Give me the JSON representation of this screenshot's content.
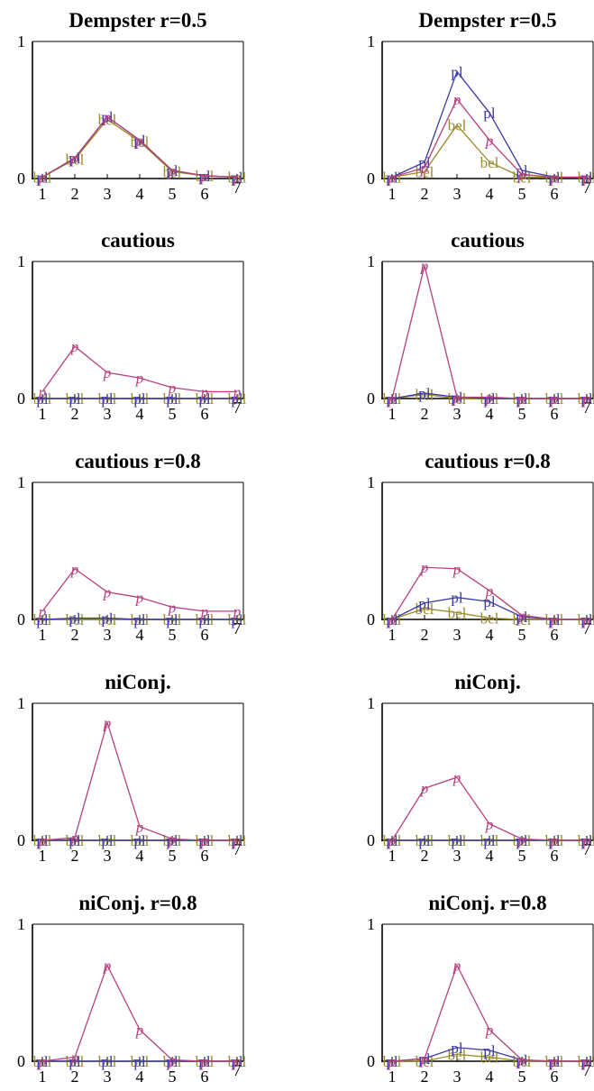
{
  "colors": {
    "p": "#b5417e",
    "pl": "#3b3ba3",
    "bel": "#9b8a2a",
    "axis": "#000000"
  },
  "chart_data": [
    {
      "type": "line",
      "title": "Dempster r=0.5",
      "x": [
        1,
        2,
        3,
        4,
        5,
        6,
        7
      ],
      "xticks": [
        "1",
        "2",
        "3",
        "4",
        "5",
        "6",
        "7"
      ],
      "yticks": [
        "0",
        "1"
      ],
      "ylim": [
        0,
        1
      ],
      "grid": false,
      "series": [
        {
          "name": "p",
          "values": [
            0.01,
            0.15,
            0.45,
            0.28,
            0.06,
            0.02,
            0.01
          ]
        },
        {
          "name": "pl",
          "values": [
            0.01,
            0.15,
            0.45,
            0.28,
            0.06,
            0.02,
            0.01
          ]
        },
        {
          "name": "bel",
          "values": [
            0.01,
            0.14,
            0.43,
            0.27,
            0.05,
            0.02,
            0.01
          ]
        }
      ]
    },
    {
      "type": "line",
      "title": "Dempster r=0.5",
      "x": [
        1,
        2,
        3,
        4,
        5,
        6,
        7
      ],
      "xticks": [
        "1",
        "2",
        "3",
        "4",
        "5",
        "6",
        "7"
      ],
      "yticks": [
        "0",
        "1"
      ],
      "ylim": [
        0,
        1
      ],
      "grid": false,
      "series": [
        {
          "name": "p",
          "values": [
            0.01,
            0.08,
            0.58,
            0.28,
            0.03,
            0.01,
            0.01
          ]
        },
        {
          "name": "pl",
          "values": [
            0.01,
            0.12,
            0.78,
            0.48,
            0.06,
            0.01,
            0.01
          ]
        },
        {
          "name": "bel",
          "values": [
            0.01,
            0.05,
            0.39,
            0.12,
            0.01,
            0.01,
            0.01
          ]
        }
      ]
    },
    {
      "type": "line",
      "title": "cautious",
      "x": [
        1,
        2,
        3,
        4,
        5,
        6,
        7
      ],
      "xticks": [
        "1",
        "2",
        "3",
        "4",
        "5",
        "6",
        "7"
      ],
      "yticks": [
        "0",
        "1"
      ],
      "ylim": [
        0,
        1
      ],
      "grid": false,
      "series": [
        {
          "name": "p",
          "values": [
            0.05,
            0.38,
            0.19,
            0.15,
            0.08,
            0.05,
            0.05
          ]
        },
        {
          "name": "pl",
          "values": [
            0.0,
            0.0,
            0.0,
            0.0,
            0.0,
            0.0,
            0.0
          ]
        },
        {
          "name": "bel",
          "values": [
            0.0,
            0.0,
            0.0,
            0.0,
            0.0,
            0.0,
            0.0
          ]
        }
      ]
    },
    {
      "type": "line",
      "title": "cautious",
      "x": [
        1,
        2,
        3,
        4,
        5,
        6,
        7
      ],
      "xticks": [
        "1",
        "2",
        "3",
        "4",
        "5",
        "6",
        "7"
      ],
      "yticks": [
        "0",
        "1"
      ],
      "ylim": [
        0,
        1
      ],
      "grid": false,
      "series": [
        {
          "name": "p",
          "values": [
            0.0,
            0.97,
            0.01,
            0.01,
            0.0,
            0.0,
            0.0
          ]
        },
        {
          "name": "pl",
          "values": [
            0.0,
            0.04,
            0.01,
            0.0,
            0.0,
            0.0,
            0.0
          ]
        },
        {
          "name": "bel",
          "values": [
            0.0,
            0.03,
            0.0,
            0.0,
            0.0,
            0.0,
            0.0
          ]
        }
      ]
    },
    {
      "type": "line",
      "title": "cautious r=0.8",
      "x": [
        1,
        2,
        3,
        4,
        5,
        6,
        7
      ],
      "xticks": [
        "1",
        "2",
        "3",
        "4",
        "5",
        "6",
        "7"
      ],
      "yticks": [
        "0",
        "1"
      ],
      "ylim": [
        0,
        1
      ],
      "grid": false,
      "series": [
        {
          "name": "p",
          "values": [
            0.06,
            0.37,
            0.2,
            0.16,
            0.09,
            0.06,
            0.06
          ]
        },
        {
          "name": "pl",
          "values": [
            0.0,
            0.01,
            0.01,
            0.0,
            0.0,
            0.0,
            0.0
          ]
        },
        {
          "name": "bel",
          "values": [
            0.0,
            0.0,
            0.0,
            0.0,
            0.0,
            0.0,
            0.0
          ]
        }
      ]
    },
    {
      "type": "line",
      "title": "cautious r=0.8",
      "x": [
        1,
        2,
        3,
        4,
        5,
        6,
        7
      ],
      "xticks": [
        "1",
        "2",
        "3",
        "4",
        "5",
        "6",
        "7"
      ],
      "yticks": [
        "0",
        "1"
      ],
      "ylim": [
        0,
        1
      ],
      "grid": false,
      "series": [
        {
          "name": "p",
          "values": [
            0.0,
            0.38,
            0.37,
            0.21,
            0.03,
            0.0,
            0.0
          ]
        },
        {
          "name": "pl",
          "values": [
            0.0,
            0.12,
            0.16,
            0.13,
            0.02,
            0.0,
            0.0
          ]
        },
        {
          "name": "bel",
          "values": [
            0.0,
            0.08,
            0.05,
            0.01,
            0.0,
            0.0,
            0.0
          ]
        }
      ]
    },
    {
      "type": "line",
      "title": "niConj.",
      "x": [
        1,
        2,
        3,
        4,
        5,
        6,
        7
      ],
      "xticks": [
        "1",
        "2",
        "3",
        "4",
        "5",
        "6",
        "7"
      ],
      "yticks": [
        "0",
        "1"
      ],
      "ylim": [
        0,
        1
      ],
      "grid": false,
      "series": [
        {
          "name": "p",
          "values": [
            0.0,
            0.02,
            0.86,
            0.1,
            0.01,
            0.0,
            0.0
          ]
        },
        {
          "name": "pl",
          "values": [
            0.0,
            0.0,
            0.0,
            0.0,
            0.0,
            0.0,
            0.0
          ]
        },
        {
          "name": "bel",
          "values": [
            0.0,
            0.0,
            0.0,
            0.0,
            0.0,
            0.0,
            0.0
          ]
        }
      ]
    },
    {
      "type": "line",
      "title": "niConj.",
      "x": [
        1,
        2,
        3,
        4,
        5,
        6,
        7
      ],
      "xticks": [
        "1",
        "2",
        "3",
        "4",
        "5",
        "6",
        "7"
      ],
      "yticks": [
        "0",
        "1"
      ],
      "ylim": [
        0,
        1
      ],
      "grid": false,
      "series": [
        {
          "name": "p",
          "values": [
            0.0,
            0.38,
            0.46,
            0.12,
            0.01,
            0.0,
            0.0
          ]
        },
        {
          "name": "pl",
          "values": [
            0.0,
            0.0,
            0.0,
            0.0,
            0.0,
            0.0,
            0.0
          ]
        },
        {
          "name": "bel",
          "values": [
            0.0,
            0.0,
            0.0,
            0.0,
            0.0,
            0.0,
            0.0
          ]
        }
      ]
    },
    {
      "type": "line",
      "title": "niConj. r=0.8",
      "x": [
        1,
        2,
        3,
        4,
        5,
        6,
        7
      ],
      "xticks": [
        "1",
        "2",
        "3",
        "4",
        "5",
        "6",
        "7"
      ],
      "yticks": [
        "0",
        "1"
      ],
      "ylim": [
        0,
        1
      ],
      "grid": false,
      "series": [
        {
          "name": "p",
          "values": [
            0.0,
            0.03,
            0.7,
            0.23,
            0.01,
            0.0,
            0.0
          ]
        },
        {
          "name": "pl",
          "values": [
            0.0,
            0.0,
            0.0,
            0.0,
            0.0,
            0.0,
            0.0
          ]
        },
        {
          "name": "bel",
          "values": [
            0.0,
            0.0,
            0.0,
            0.0,
            0.0,
            0.0,
            0.0
          ]
        }
      ]
    },
    {
      "type": "line",
      "title": "niConj. r=0.8",
      "x": [
        1,
        2,
        3,
        4,
        5,
        6,
        7
      ],
      "xticks": [
        "1",
        "2",
        "3",
        "4",
        "5",
        "6",
        "7"
      ],
      "yticks": [
        "0",
        "1"
      ],
      "ylim": [
        0,
        1
      ],
      "grid": false,
      "series": [
        {
          "name": "p",
          "values": [
            0.0,
            0.02,
            0.7,
            0.23,
            0.01,
            0.0,
            0.0
          ]
        },
        {
          "name": "pl",
          "values": [
            0.0,
            0.02,
            0.1,
            0.08,
            0.01,
            0.0,
            0.0
          ]
        },
        {
          "name": "bel",
          "values": [
            0.0,
            0.0,
            0.05,
            0.03,
            0.0,
            0.0,
            0.0
          ]
        }
      ]
    }
  ]
}
